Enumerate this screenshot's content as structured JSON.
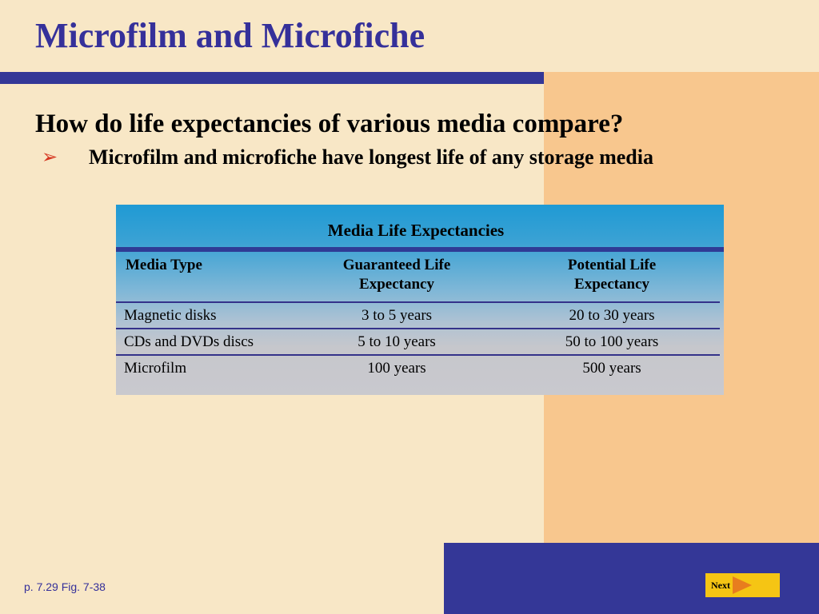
{
  "slide": {
    "title": "Microfilm and Microfiche",
    "question": "How do life expectancies of various media compare?",
    "bullet_icon": "arrow-bullet-icon",
    "bullet": "Microfilm and microfiche have longest life of any storage media"
  },
  "table": {
    "caption": "Media Life Expectancies",
    "headers": {
      "media": "Media Type",
      "guaranteed_1": "Guaranteed Life",
      "guaranteed_2": "Expectancy",
      "potential_1": "Potential Life",
      "potential_2": "Expectancy"
    },
    "rows": [
      {
        "media": "Magnetic disks",
        "guaranteed": "3 to 5 years",
        "potential": "20 to 30 years"
      },
      {
        "media": "CDs and DVDs discs",
        "guaranteed": "5 to 10 years",
        "potential": "50 to 100 years"
      },
      {
        "media": "Microfilm",
        "guaranteed": "100 years",
        "potential": "500 years"
      }
    ]
  },
  "footer": {
    "page_ref": "p. 7.29 Fig. 7-38",
    "next_label": "Next",
    "next_icon": "right-arrow-icon"
  },
  "colors": {
    "title": "#35309a",
    "accent_bar": "#343797",
    "background": "#f8e7c6",
    "panel": "#f8c78e",
    "bullet": "#d6351f",
    "next_button": "#f5c514"
  }
}
